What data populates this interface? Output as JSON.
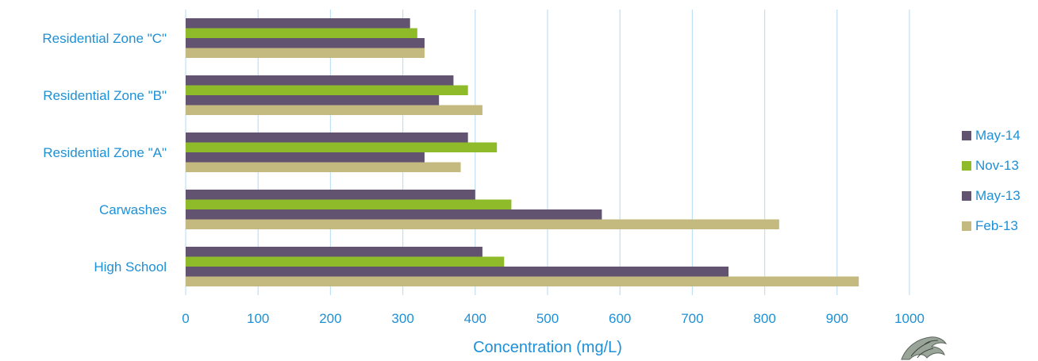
{
  "chart_data": {
    "type": "bar",
    "orientation": "horizontal",
    "categories": [
      "High School",
      "Carwashes",
      "Residential Zone \"A\"",
      "Residential Zone \"B\"",
      "Residential Zone \"C\""
    ],
    "series": [
      {
        "name": "Feb-13",
        "color": "#c4b97f",
        "values": [
          930,
          820,
          380,
          410,
          330
        ]
      },
      {
        "name": "May-13",
        "color": "#625470",
        "values": [
          750,
          575,
          330,
          350,
          330
        ]
      },
      {
        "name": "Nov-13",
        "color": "#8fba2a",
        "values": [
          440,
          450,
          430,
          390,
          320
        ]
      },
      {
        "name": "May-14",
        "color": "#625470",
        "values": [
          410,
          400,
          390,
          370,
          310
        ]
      }
    ],
    "xlabel": "Concentration (mg/L)",
    "ylabel": "",
    "xlim": [
      0,
      1000
    ],
    "xticks": [
      "0",
      "100",
      "200",
      "300",
      "400",
      "500",
      "600",
      "700",
      "800",
      "900",
      "1000"
    ],
    "grid": true,
    "legend_position": "right",
    "label_color": "#1e90d6",
    "grid_color": "#bfe0f5"
  }
}
